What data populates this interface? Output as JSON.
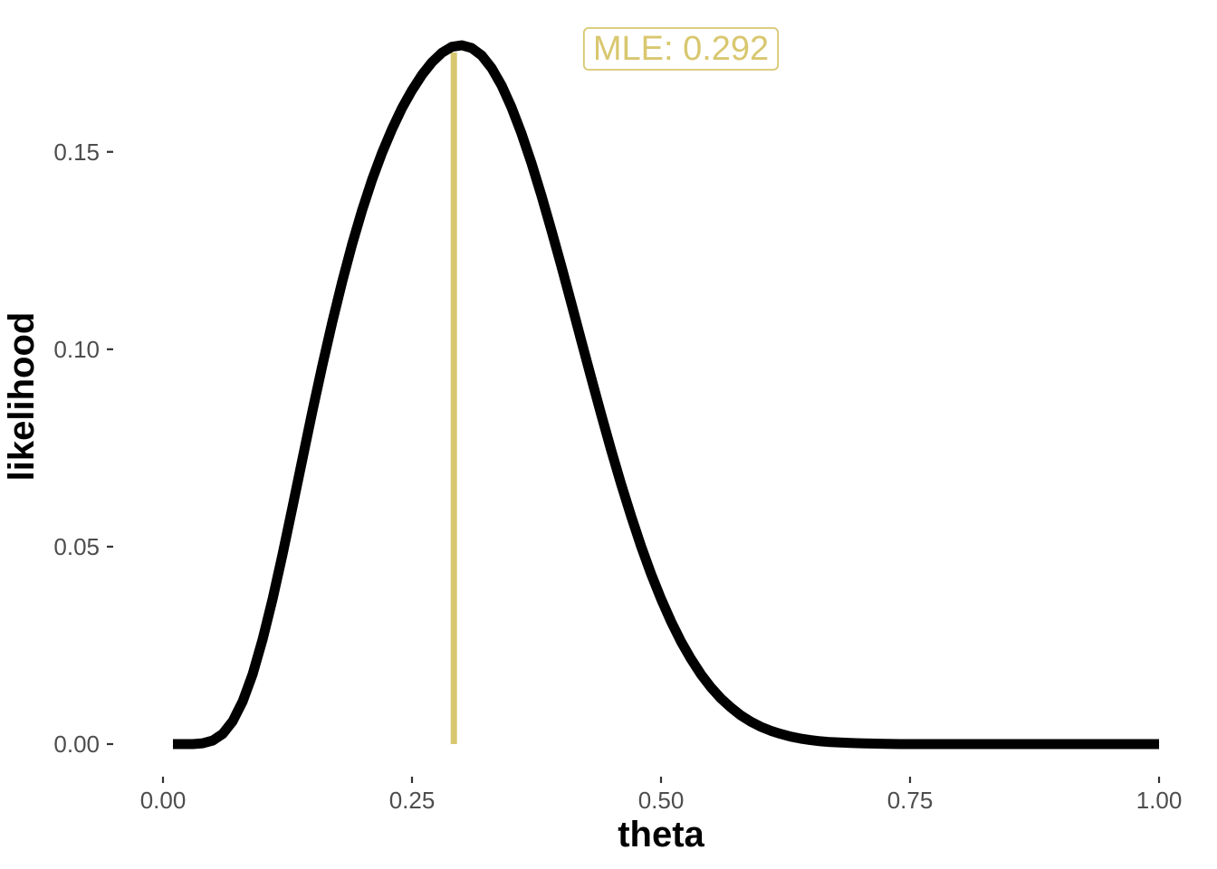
{
  "chart_data": {
    "type": "line",
    "title": "",
    "xlabel": "theta",
    "ylabel": "likelihood",
    "xlim": [
      0,
      1
    ],
    "ylim": [
      0,
      0.177
    ],
    "x_ticks": [
      0,
      0.25,
      0.5,
      0.75,
      1
    ],
    "x_tick_labels": [
      "0.00",
      "0.25",
      "0.50",
      "0.75",
      "1.00"
    ],
    "y_ticks": [
      0,
      0.05,
      0.1,
      0.15
    ],
    "y_tick_labels": [
      "0.00",
      "0.05",
      "0.10",
      "0.15"
    ],
    "grid": false,
    "legend": "none",
    "series": [
      {
        "color": "#000000",
        "x": [
          0.01,
          0.02,
          0.03,
          0.04,
          0.05,
          0.06,
          0.07,
          0.08,
          0.09,
          0.1,
          0.11,
          0.12,
          0.13,
          0.14,
          0.15,
          0.16,
          0.17,
          0.18,
          0.19,
          0.2,
          0.21,
          0.22,
          0.23,
          0.24,
          0.25,
          0.26,
          0.27,
          0.28,
          0.29,
          0.3,
          0.31,
          0.32,
          0.33,
          0.34,
          0.35,
          0.36,
          0.37,
          0.38,
          0.39,
          0.4,
          0.41,
          0.42,
          0.43,
          0.44,
          0.45,
          0.46,
          0.47,
          0.48,
          0.49,
          0.5,
          0.51,
          0.52,
          0.53,
          0.54,
          0.55,
          0.56,
          0.57,
          0.58,
          0.59,
          0.6,
          0.61,
          0.62,
          0.63,
          0.64,
          0.65,
          0.66,
          0.67,
          0.68,
          0.69,
          0.7,
          0.72,
          0.74,
          0.76,
          0.78,
          0.8,
          0.85,
          0.9,
          0.95,
          1.0
        ],
        "values": [
          0.0,
          0.0,
          0.0,
          0.0002,
          0.0009,
          0.0026,
          0.0058,
          0.0108,
          0.0177,
          0.0265,
          0.0367,
          0.048,
          0.06,
          0.0722,
          0.0843,
          0.0959,
          0.1069,
          0.1172,
          0.1267,
          0.1353,
          0.143,
          0.1498,
          0.1558,
          0.1611,
          0.1656,
          0.1695,
          0.1727,
          0.1751,
          0.1766,
          0.177,
          0.1763,
          0.1744,
          0.1712,
          0.1668,
          0.1612,
          0.1546,
          0.1471,
          0.1389,
          0.1301,
          0.121,
          0.1116,
          0.1021,
          0.0927,
          0.0834,
          0.0744,
          0.0658,
          0.0577,
          0.0501,
          0.0431,
          0.0368,
          0.0311,
          0.026,
          0.0216,
          0.0177,
          0.0144,
          0.0116,
          0.0093,
          0.0073,
          0.0057,
          0.0044,
          0.0034,
          0.0026,
          0.0019,
          0.0014,
          0.001,
          0.0007,
          0.0005,
          0.0004,
          0.0003,
          0.0002,
          0.0001,
          0.0,
          0.0,
          0.0,
          0.0,
          0.0,
          0.0,
          0.0,
          0.0
        ]
      }
    ],
    "annotations": [
      {
        "type": "vline",
        "x": 0.292,
        "color": "#d8c76f"
      },
      {
        "type": "label",
        "text": "MLE: 0.292",
        "x": 0.52,
        "y": 0.177,
        "color": "#d8c76f"
      }
    ]
  }
}
